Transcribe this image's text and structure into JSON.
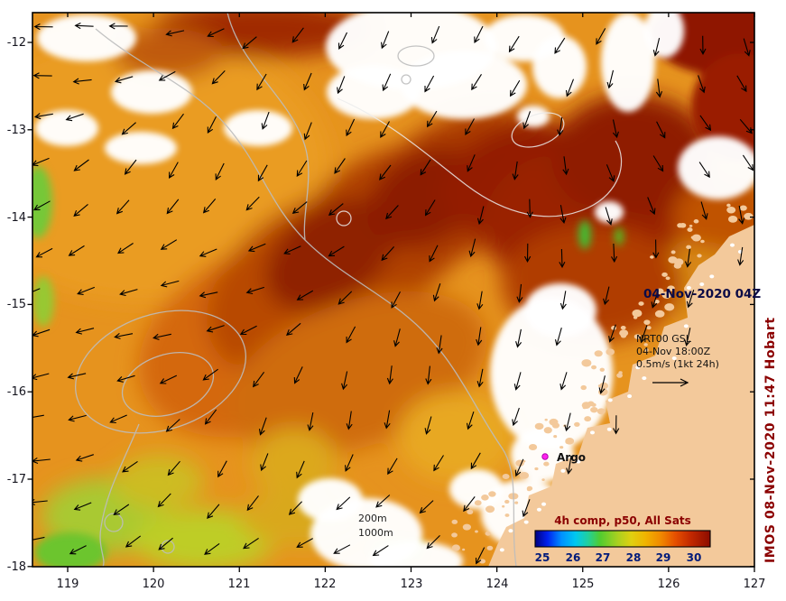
{
  "annotations": {
    "datetime": "04-Nov-2020 04Z",
    "model": {
      "name": "NRT00 GSL",
      "valid": "04-Nov 18:00Z",
      "scale": "0.5m/s (1kt 24h)"
    },
    "argo": "Argo",
    "isobath_200": "200m",
    "isobath_1000": "1000m",
    "composite": "4h comp, p50, All Sats",
    "credit": "IMOS 08-Nov-2020 11:47 Hobart"
  },
  "axes": {
    "x_ticks": [
      "119",
      "120",
      "121",
      "122",
      "123",
      "124",
      "125",
      "126",
      "127"
    ],
    "y_ticks": [
      "-12",
      "-13",
      "-14",
      "-15",
      "-16",
      "-17",
      "-18"
    ]
  },
  "colorbar": {
    "ticks": [
      "25",
      "26",
      "27",
      "28",
      "29",
      "30"
    ]
  },
  "colors": {
    "land": "#f3c99b",
    "argo_marker": "#ff22ee",
    "maroon_text": "#8b0000",
    "datetime_text": "#0b0b46"
  }
}
